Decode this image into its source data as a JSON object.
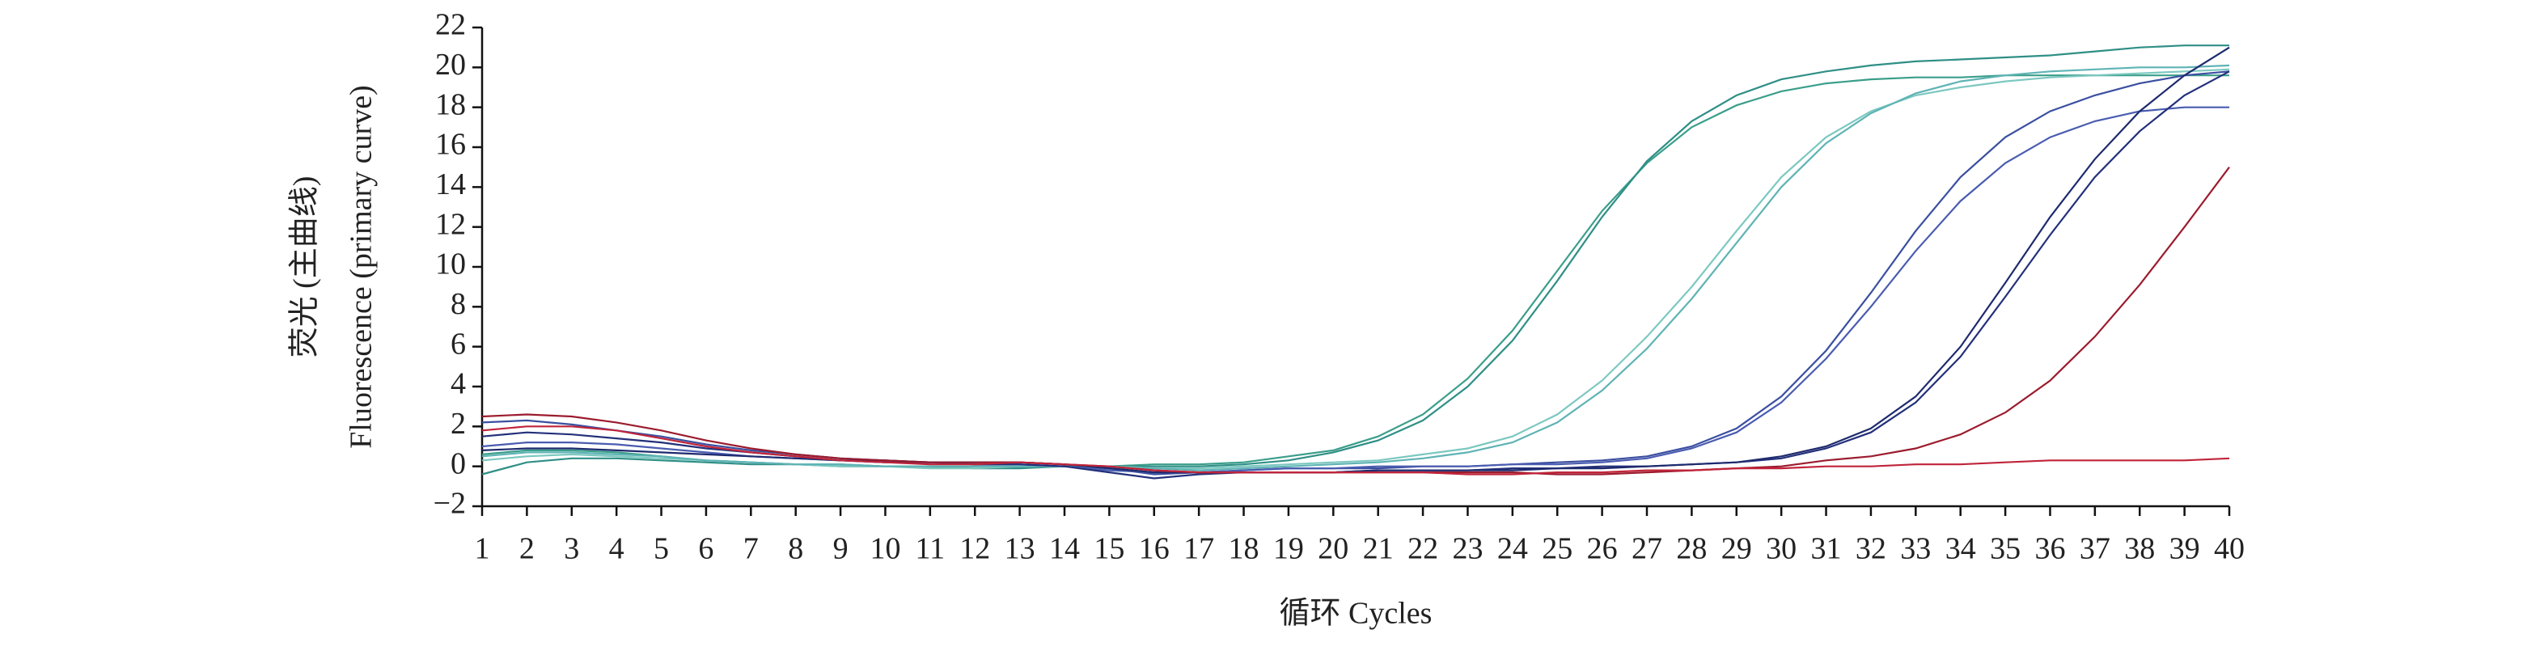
{
  "chart_data": {
    "type": "line",
    "ylabel": [
      "荧光 (主曲线)",
      "Fluorescence (primary curve)"
    ],
    "xlabel": "循环 Cycles",
    "x": [
      1,
      2,
      3,
      4,
      5,
      6,
      7,
      8,
      9,
      10,
      11,
      12,
      13,
      14,
      15,
      16,
      17,
      18,
      19,
      20,
      21,
      22,
      23,
      24,
      25,
      26,
      27,
      28,
      29,
      30,
      31,
      32,
      33,
      34,
      35,
      36,
      37,
      38,
      39,
      40
    ],
    "xlim": [
      1,
      40
    ],
    "xticks": [
      1,
      2,
      3,
      4,
      5,
      6,
      7,
      8,
      9,
      10,
      11,
      12,
      13,
      14,
      15,
      16,
      17,
      18,
      19,
      20,
      21,
      22,
      23,
      24,
      25,
      26,
      27,
      28,
      29,
      30,
      31,
      32,
      33,
      34,
      35,
      36,
      37,
      38,
      39,
      40
    ],
    "ylim": [
      -2,
      22
    ],
    "yticks": [
      {
        "value": -2,
        "label": "−2"
      },
      0,
      2,
      4,
      6,
      8,
      10,
      12,
      14,
      16,
      18,
      20,
      22
    ],
    "series": [
      {
        "color": "#3a9e8a",
        "values": [
          0.6,
          0.8,
          0.8,
          0.7,
          0.5,
          0.3,
          0.2,
          0.1,
          0.1,
          0.0,
          0.0,
          0.0,
          0.0,
          0.0,
          0.0,
          0.1,
          0.1,
          0.2,
          0.5,
          0.8,
          1.5,
          2.6,
          4.4,
          6.8,
          9.8,
          12.8,
          15.2,
          17.0,
          18.1,
          18.8,
          19.2,
          19.4,
          19.5,
          19.5,
          19.6,
          19.6,
          19.6,
          19.6,
          19.6,
          19.6
        ]
      },
      {
        "color": "#2f8f86",
        "values": [
          -0.4,
          0.2,
          0.4,
          0.4,
          0.3,
          0.2,
          0.1,
          0.1,
          0.0,
          0.0,
          0.0,
          -0.1,
          -0.1,
          0.0,
          0.0,
          0.0,
          0.0,
          0.1,
          0.3,
          0.7,
          1.3,
          2.3,
          4.0,
          6.3,
          9.3,
          12.5,
          15.3,
          17.3,
          18.6,
          19.4,
          19.8,
          20.1,
          20.3,
          20.4,
          20.5,
          20.6,
          20.8,
          21.0,
          21.1,
          21.1
        ]
      },
      {
        "color": "#7cc8c0",
        "values": [
          0.3,
          0.5,
          0.6,
          0.5,
          0.4,
          0.3,
          0.2,
          0.1,
          0.0,
          0.0,
          -0.1,
          -0.1,
          0.0,
          0.0,
          0.0,
          -0.1,
          -0.1,
          0.0,
          0.1,
          0.2,
          0.3,
          0.6,
          0.9,
          1.5,
          2.6,
          4.3,
          6.5,
          9.0,
          11.8,
          14.5,
          16.5,
          17.8,
          18.6,
          19.0,
          19.3,
          19.5,
          19.6,
          19.7,
          19.8,
          19.9
        ]
      },
      {
        "color": "#5fb3b5",
        "values": [
          0.5,
          0.7,
          0.7,
          0.6,
          0.5,
          0.3,
          0.2,
          0.1,
          0.1,
          0.0,
          0.0,
          0.0,
          0.0,
          0.0,
          -0.1,
          -0.1,
          -0.2,
          -0.1,
          0.0,
          0.1,
          0.2,
          0.4,
          0.7,
          1.2,
          2.2,
          3.8,
          5.9,
          8.4,
          11.2,
          14.0,
          16.2,
          17.7,
          18.7,
          19.3,
          19.6,
          19.8,
          19.9,
          20.0,
          20.0,
          20.1
        ]
      },
      {
        "color": "#3b4fa0",
        "values": [
          2.2,
          2.3,
          2.1,
          1.8,
          1.5,
          1.1,
          0.8,
          0.6,
          0.4,
          0.3,
          0.2,
          0.2,
          0.2,
          0.1,
          -0.1,
          -0.4,
          -0.3,
          -0.2,
          -0.1,
          -0.1,
          -0.1,
          0.0,
          0.0,
          0.1,
          0.2,
          0.3,
          0.5,
          1.0,
          1.9,
          3.5,
          5.8,
          8.7,
          11.8,
          14.5,
          16.5,
          17.8,
          18.6,
          19.2,
          19.6,
          19.8
        ]
      },
      {
        "color": "#4a5cb0",
        "values": [
          1.0,
          1.2,
          1.2,
          1.1,
          0.9,
          0.7,
          0.5,
          0.4,
          0.3,
          0.2,
          0.2,
          0.1,
          0.1,
          0.0,
          -0.2,
          -0.3,
          -0.3,
          -0.2,
          -0.1,
          -0.1,
          0.0,
          0.0,
          0.0,
          0.1,
          0.1,
          0.2,
          0.4,
          0.9,
          1.7,
          3.2,
          5.4,
          8.0,
          10.8,
          13.3,
          15.2,
          16.5,
          17.3,
          17.8,
          18.0,
          18.0
        ]
      },
      {
        "color": "#23307a",
        "values": [
          1.5,
          1.7,
          1.6,
          1.4,
          1.2,
          0.9,
          0.7,
          0.5,
          0.3,
          0.2,
          0.2,
          0.1,
          0.1,
          0.0,
          -0.3,
          -0.6,
          -0.4,
          -0.3,
          -0.3,
          -0.3,
          -0.2,
          -0.2,
          -0.2,
          -0.1,
          -0.1,
          0.0,
          0.0,
          0.1,
          0.2,
          0.4,
          0.9,
          1.7,
          3.2,
          5.5,
          8.5,
          11.6,
          14.5,
          16.8,
          18.6,
          19.8
        ]
      },
      {
        "color": "#1e2a6e",
        "values": [
          0.8,
          0.9,
          0.9,
          0.8,
          0.7,
          0.6,
          0.5,
          0.4,
          0.3,
          0.3,
          0.2,
          0.2,
          0.2,
          0.1,
          -0.1,
          -0.3,
          -0.3,
          -0.3,
          -0.3,
          -0.3,
          -0.2,
          -0.2,
          -0.2,
          -0.2,
          -0.1,
          -0.1,
          0.0,
          0.1,
          0.2,
          0.5,
          1.0,
          1.9,
          3.5,
          6.0,
          9.2,
          12.5,
          15.4,
          17.8,
          19.6,
          21.0
        ]
      },
      {
        "color": "#9b1c2e",
        "values": [
          2.5,
          2.6,
          2.5,
          2.2,
          1.8,
          1.3,
          0.9,
          0.6,
          0.4,
          0.3,
          0.2,
          0.2,
          0.2,
          0.1,
          0.0,
          -0.2,
          -0.3,
          -0.3,
          -0.3,
          -0.3,
          -0.3,
          -0.3,
          -0.3,
          -0.3,
          -0.4,
          -0.4,
          -0.3,
          -0.2,
          -0.1,
          0.0,
          0.3,
          0.5,
          0.9,
          1.6,
          2.7,
          4.3,
          6.5,
          9.1,
          12.0,
          15.0
        ]
      },
      {
        "color": "#c0243a",
        "values": [
          1.8,
          2.0,
          2.0,
          1.8,
          1.4,
          1.0,
          0.7,
          0.5,
          0.3,
          0.2,
          0.1,
          0.1,
          0.2,
          0.1,
          0.0,
          -0.2,
          -0.3,
          -0.3,
          -0.3,
          -0.3,
          -0.3,
          -0.3,
          -0.4,
          -0.4,
          -0.3,
          -0.3,
          -0.2,
          -0.2,
          -0.1,
          -0.1,
          0.0,
          0.0,
          0.1,
          0.1,
          0.2,
          0.3,
          0.3,
          0.3,
          0.3,
          0.4
        ]
      }
    ]
  }
}
